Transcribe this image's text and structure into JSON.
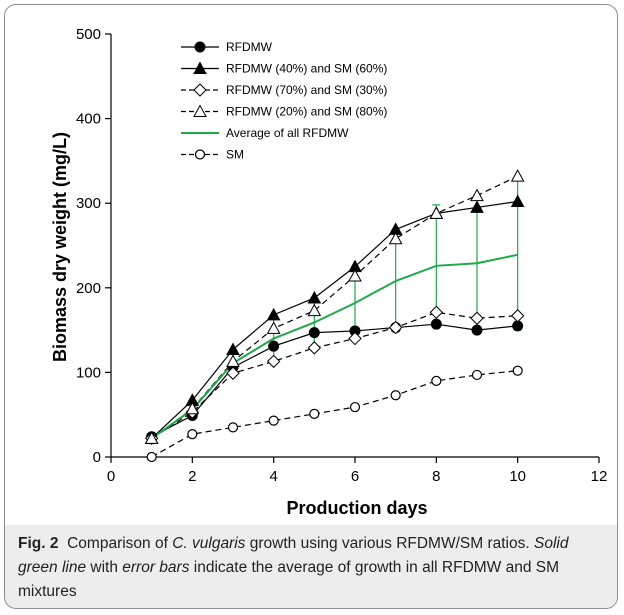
{
  "chart_data": {
    "type": "line",
    "title": "",
    "xlabel": "Production days",
    "ylabel": "Biomass dry weight (mg/L)",
    "xlim": [
      0,
      12
    ],
    "ylim": [
      0,
      500
    ],
    "xticks": [
      "0",
      "2",
      "4",
      "6",
      "8",
      "10",
      "12"
    ],
    "yticks": [
      "0",
      "100",
      "200",
      "300",
      "400",
      "500"
    ],
    "grid": false,
    "legend_position": "top-left",
    "x": [
      1,
      2,
      3,
      4,
      5,
      6,
      7,
      8,
      9,
      10
    ],
    "series": [
      {
        "name": "RFDMW",
        "line_style": "solid",
        "line_color": "#000000",
        "marker": "filled-circle",
        "values": [
          24,
          49,
          106,
          131,
          147,
          149,
          153,
          157,
          150,
          155
        ]
      },
      {
        "name": "RFDMW (40%) and SM (60%)",
        "line_style": "solid",
        "line_color": "#000000",
        "marker": "filled-triangle",
        "values": [
          22,
          67,
          127,
          168,
          188,
          225,
          269,
          288,
          295,
          302
        ]
      },
      {
        "name": "RFDMW (70%) and SM (30%)",
        "line_style": "dashed",
        "line_color": "#000000",
        "marker": "open-diamond",
        "values": [
          22,
          53,
          99,
          113,
          129,
          140,
          153,
          171,
          164,
          167
        ]
      },
      {
        "name": "RFDMW (20%) and SM (80%)",
        "line_style": "dashed",
        "line_color": "#000000",
        "marker": "open-triangle",
        "values": [
          22,
          57,
          113,
          152,
          173,
          214,
          258,
          288,
          309,
          332
        ]
      },
      {
        "name": "Average of all RFDMW",
        "line_style": "solid",
        "line_color": "#20a84a",
        "marker": "none",
        "values": [
          22,
          56,
          111,
          140,
          159,
          182,
          208,
          226,
          229,
          239
        ],
        "error_bars": [
          [
            21,
            24
          ],
          [
            49,
            67
          ],
          [
            99,
            127
          ],
          [
            113,
            168
          ],
          [
            129,
            188
          ],
          [
            140,
            225
          ],
          [
            148,
            269
          ],
          [
            157,
            298
          ],
          [
            150,
            309
          ],
          [
            150,
            332
          ]
        ]
      },
      {
        "name": "SM",
        "line_style": "dashed",
        "line_color": "#000000",
        "marker": "open-circle",
        "values": [
          0,
          27,
          35,
          43,
          51,
          59,
          73,
          90,
          97,
          102
        ]
      }
    ]
  },
  "caption": {
    "label": "Fig. 2",
    "part1": "Comparison of ",
    "species": "C. vulgaris",
    "part2": " growth using various RFDMW/SM ratios. ",
    "emph1": "Solid green line",
    "part3": " with ",
    "emph2": "error bars",
    "part4": " indicate the average of growth in all RFDMW and SM mixtures"
  }
}
